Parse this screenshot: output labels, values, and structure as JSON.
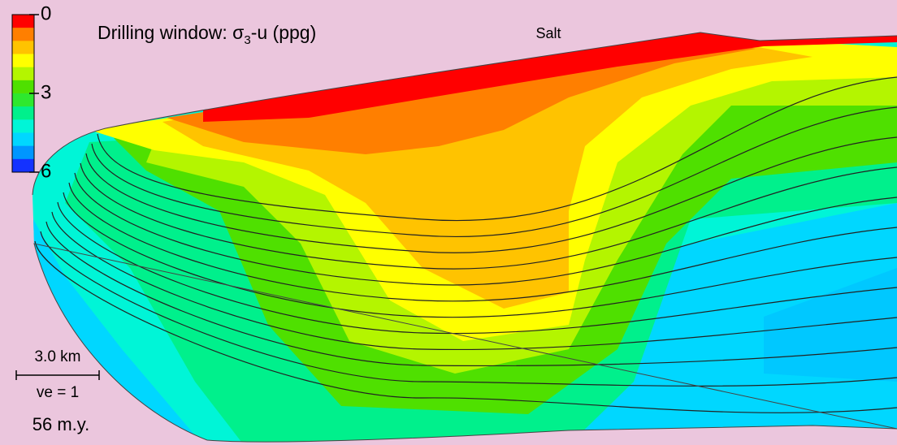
{
  "chart_data": {
    "type": "contour",
    "title": {
      "main": "Drilling window: σ",
      "sub": "3",
      "rest": "-u (ppg)"
    },
    "annotations": {
      "salt": "Salt",
      "scale": "3.0 km",
      "exaggeration": "ve = 1",
      "age": "56 m.y."
    },
    "colorbar": {
      "ylim": [
        0,
        6
      ],
      "yticks": [
        0,
        3,
        6
      ],
      "colors": [
        "#ff0000",
        "#ff7f00",
        "#ffc300",
        "#ffff00",
        "#b4f500",
        "#4fe000",
        "#2ee82e",
        "#00f08c",
        "#00f5d7",
        "#00d7ff",
        "#0096ff",
        "#1432ff"
      ]
    }
  }
}
